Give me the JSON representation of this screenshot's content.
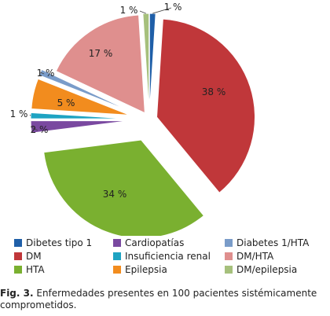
{
  "chart_data": {
    "type": "pie",
    "slices": [
      {
        "name": "Dibetes tipo 1",
        "value": 1,
        "label": "1 %",
        "color": "#1f5fa8"
      },
      {
        "name": "DM",
        "value": 38,
        "label": "38 %",
        "color": "#c0373a"
      },
      {
        "name": "HTA",
        "value": 34,
        "label": "34 %",
        "color": "#7ab030"
      },
      {
        "name": "Cardiopatías",
        "value": 2,
        "label": "2 %",
        "color": "#7a49a0"
      },
      {
        "name": "Insuficiencia renal",
        "value": 1,
        "label": "1 %",
        "color": "#1ea3c2"
      },
      {
        "name": "Epilepsia",
        "value": 5,
        "label": "5 %",
        "color": "#f28c1e"
      },
      {
        "name": "Diabetes 1/HTA",
        "value": 1,
        "label": "1 %",
        "color": "#7a9cc9"
      },
      {
        "name": "DM/HTA",
        "value": 17,
        "label": "17 %",
        "color": "#df8f8e"
      },
      {
        "name": "DM/epilepsia",
        "value": 1,
        "label": "1 %",
        "color": "#a6c07c"
      }
    ],
    "legend_position": "bottom"
  },
  "caption": {
    "fig_label": "Fig. 3.",
    "text": " Enfermedades presentes en 100  pacientes sistémicamente comprometidos."
  }
}
